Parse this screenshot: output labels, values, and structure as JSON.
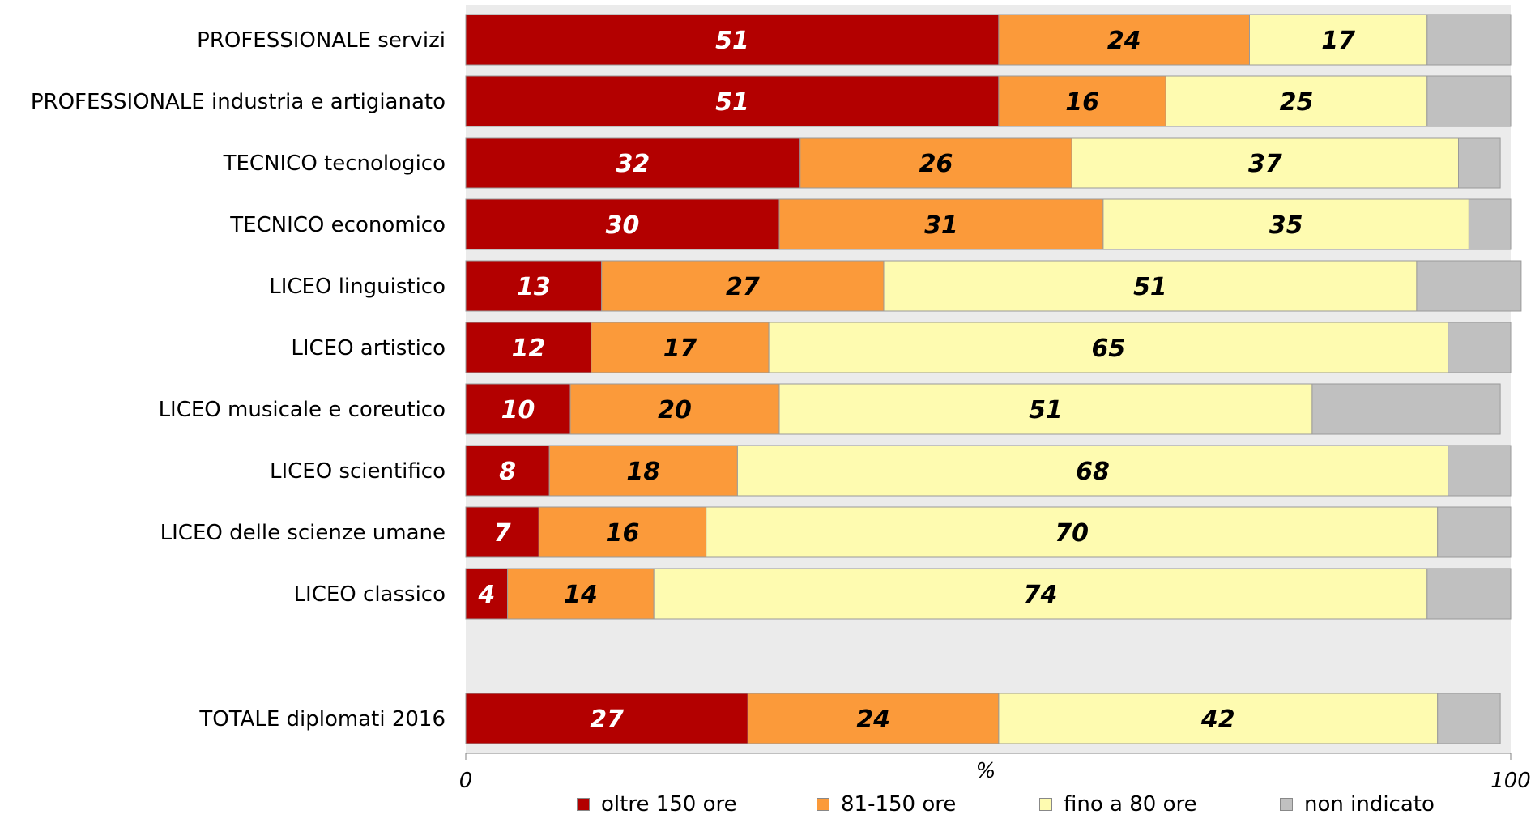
{
  "chart_data": {
    "type": "bar",
    "orientation": "horizontal",
    "stacked": true,
    "categories": [
      "PROFESSIONALE servizi",
      "PROFESSIONALE industria e artigianato",
      "TECNICO tecnologico",
      "TECNICO economico",
      "LICEO linguistico",
      "LICEO artistico",
      "LICEO musicale e coreutico",
      "LICEO scientifico",
      "LICEO delle scienze umane",
      "LICEO classico",
      "TOTALE diplomati 2016"
    ],
    "series": [
      {
        "name": "oltre 150 ore",
        "color": "#b30000",
        "label_color": "#ffffff",
        "values": [
          51,
          51,
          32,
          30,
          13,
          12,
          10,
          8,
          7,
          4,
          27
        ]
      },
      {
        "name": "81-150 ore",
        "color": "#fb9a3a",
        "label_color": "#000000",
        "values": [
          24,
          16,
          26,
          31,
          27,
          17,
          20,
          18,
          16,
          14,
          24
        ]
      },
      {
        "name": "fino a 80 ore",
        "color": "#fefbb0",
        "label_color": "#000000",
        "values": [
          17,
          25,
          37,
          35,
          51,
          65,
          51,
          68,
          70,
          74,
          42
        ]
      },
      {
        "name": "non indicato",
        "color": "#c0c0c0",
        "label_color": "#000000",
        "values": [
          8,
          8,
          4,
          4,
          10,
          6,
          18,
          6,
          7,
          8,
          6
        ]
      }
    ],
    "show_value_labels_for": [
      "oltre 150 ore",
      "81-150 ore",
      "fino a 80 ore"
    ],
    "xlim": [
      0,
      100
    ],
    "xlabel": "%",
    "xtick_labels": [
      "0",
      "100"
    ],
    "plot_background": "#ebebeb",
    "legend_position": "bottom"
  }
}
